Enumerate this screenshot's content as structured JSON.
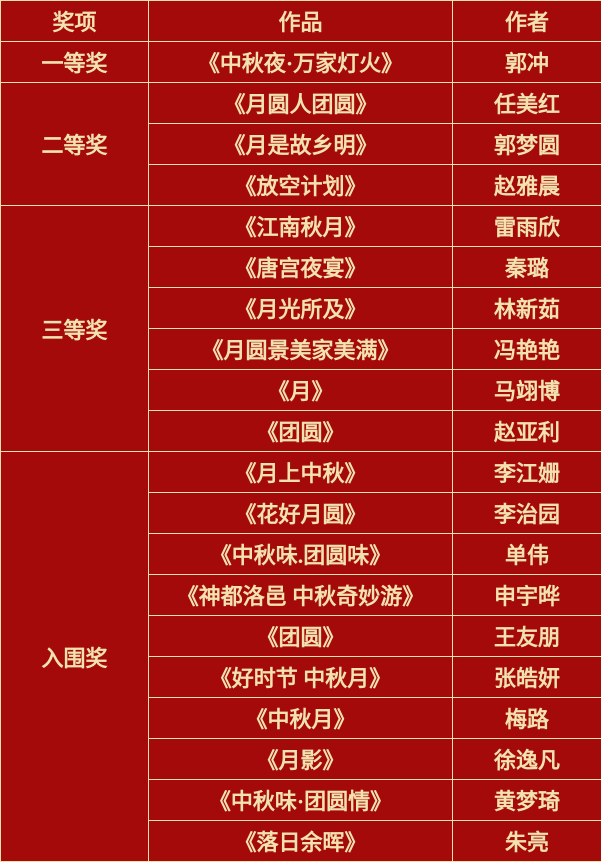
{
  "colors": {
    "background": "#a50a0a",
    "text": "#f2e2b0",
    "border": "#efe0ad"
  },
  "table": {
    "headers": {
      "award": "奖项",
      "work": "作品",
      "author": "作者"
    },
    "groups": [
      {
        "award": "一等奖",
        "entries": [
          {
            "work": "《中秋夜·万家灯火》",
            "author": "郭冲"
          }
        ]
      },
      {
        "award": "二等奖",
        "entries": [
          {
            "work": "《月圆人团圆》",
            "author": "任美红"
          },
          {
            "work": "《月是故乡明》",
            "author": "郭梦圆"
          },
          {
            "work": "《放空计划》",
            "author": "赵雅晨"
          }
        ]
      },
      {
        "award": "三等奖",
        "entries": [
          {
            "work": "《江南秋月》",
            "author": "雷雨欣"
          },
          {
            "work": "《唐宫夜宴》",
            "author": "秦璐"
          },
          {
            "work": "《月光所及》",
            "author": "林新茹"
          },
          {
            "work": "《月圆景美家美满》",
            "author": "冯艳艳"
          },
          {
            "work": "《月》",
            "author": "马翊博"
          },
          {
            "work": "《团圆》",
            "author": "赵亚利"
          }
        ]
      },
      {
        "award": "入围奖",
        "entries": [
          {
            "work": "《月上中秋》",
            "author": "李江姗"
          },
          {
            "work": "《花好月圆》",
            "author": "李治园"
          },
          {
            "work": "《中秋味.团圆味》",
            "author": "单伟"
          },
          {
            "work": "《神都洛邑 中秋奇妙游》",
            "author": "申宇晔"
          },
          {
            "work": "《团圆》",
            "author": "王友朋"
          },
          {
            "work": "《好时节 中秋月》",
            "author": "张皓妍"
          },
          {
            "work": "《中秋月》",
            "author": "梅路"
          },
          {
            "work": "《月影》",
            "author": "徐逸凡"
          },
          {
            "work": "《中秋味·团圆情》",
            "author": "黄梦琦"
          },
          {
            "work": "《落日余晖》",
            "author": "朱亮"
          }
        ]
      }
    ]
  }
}
